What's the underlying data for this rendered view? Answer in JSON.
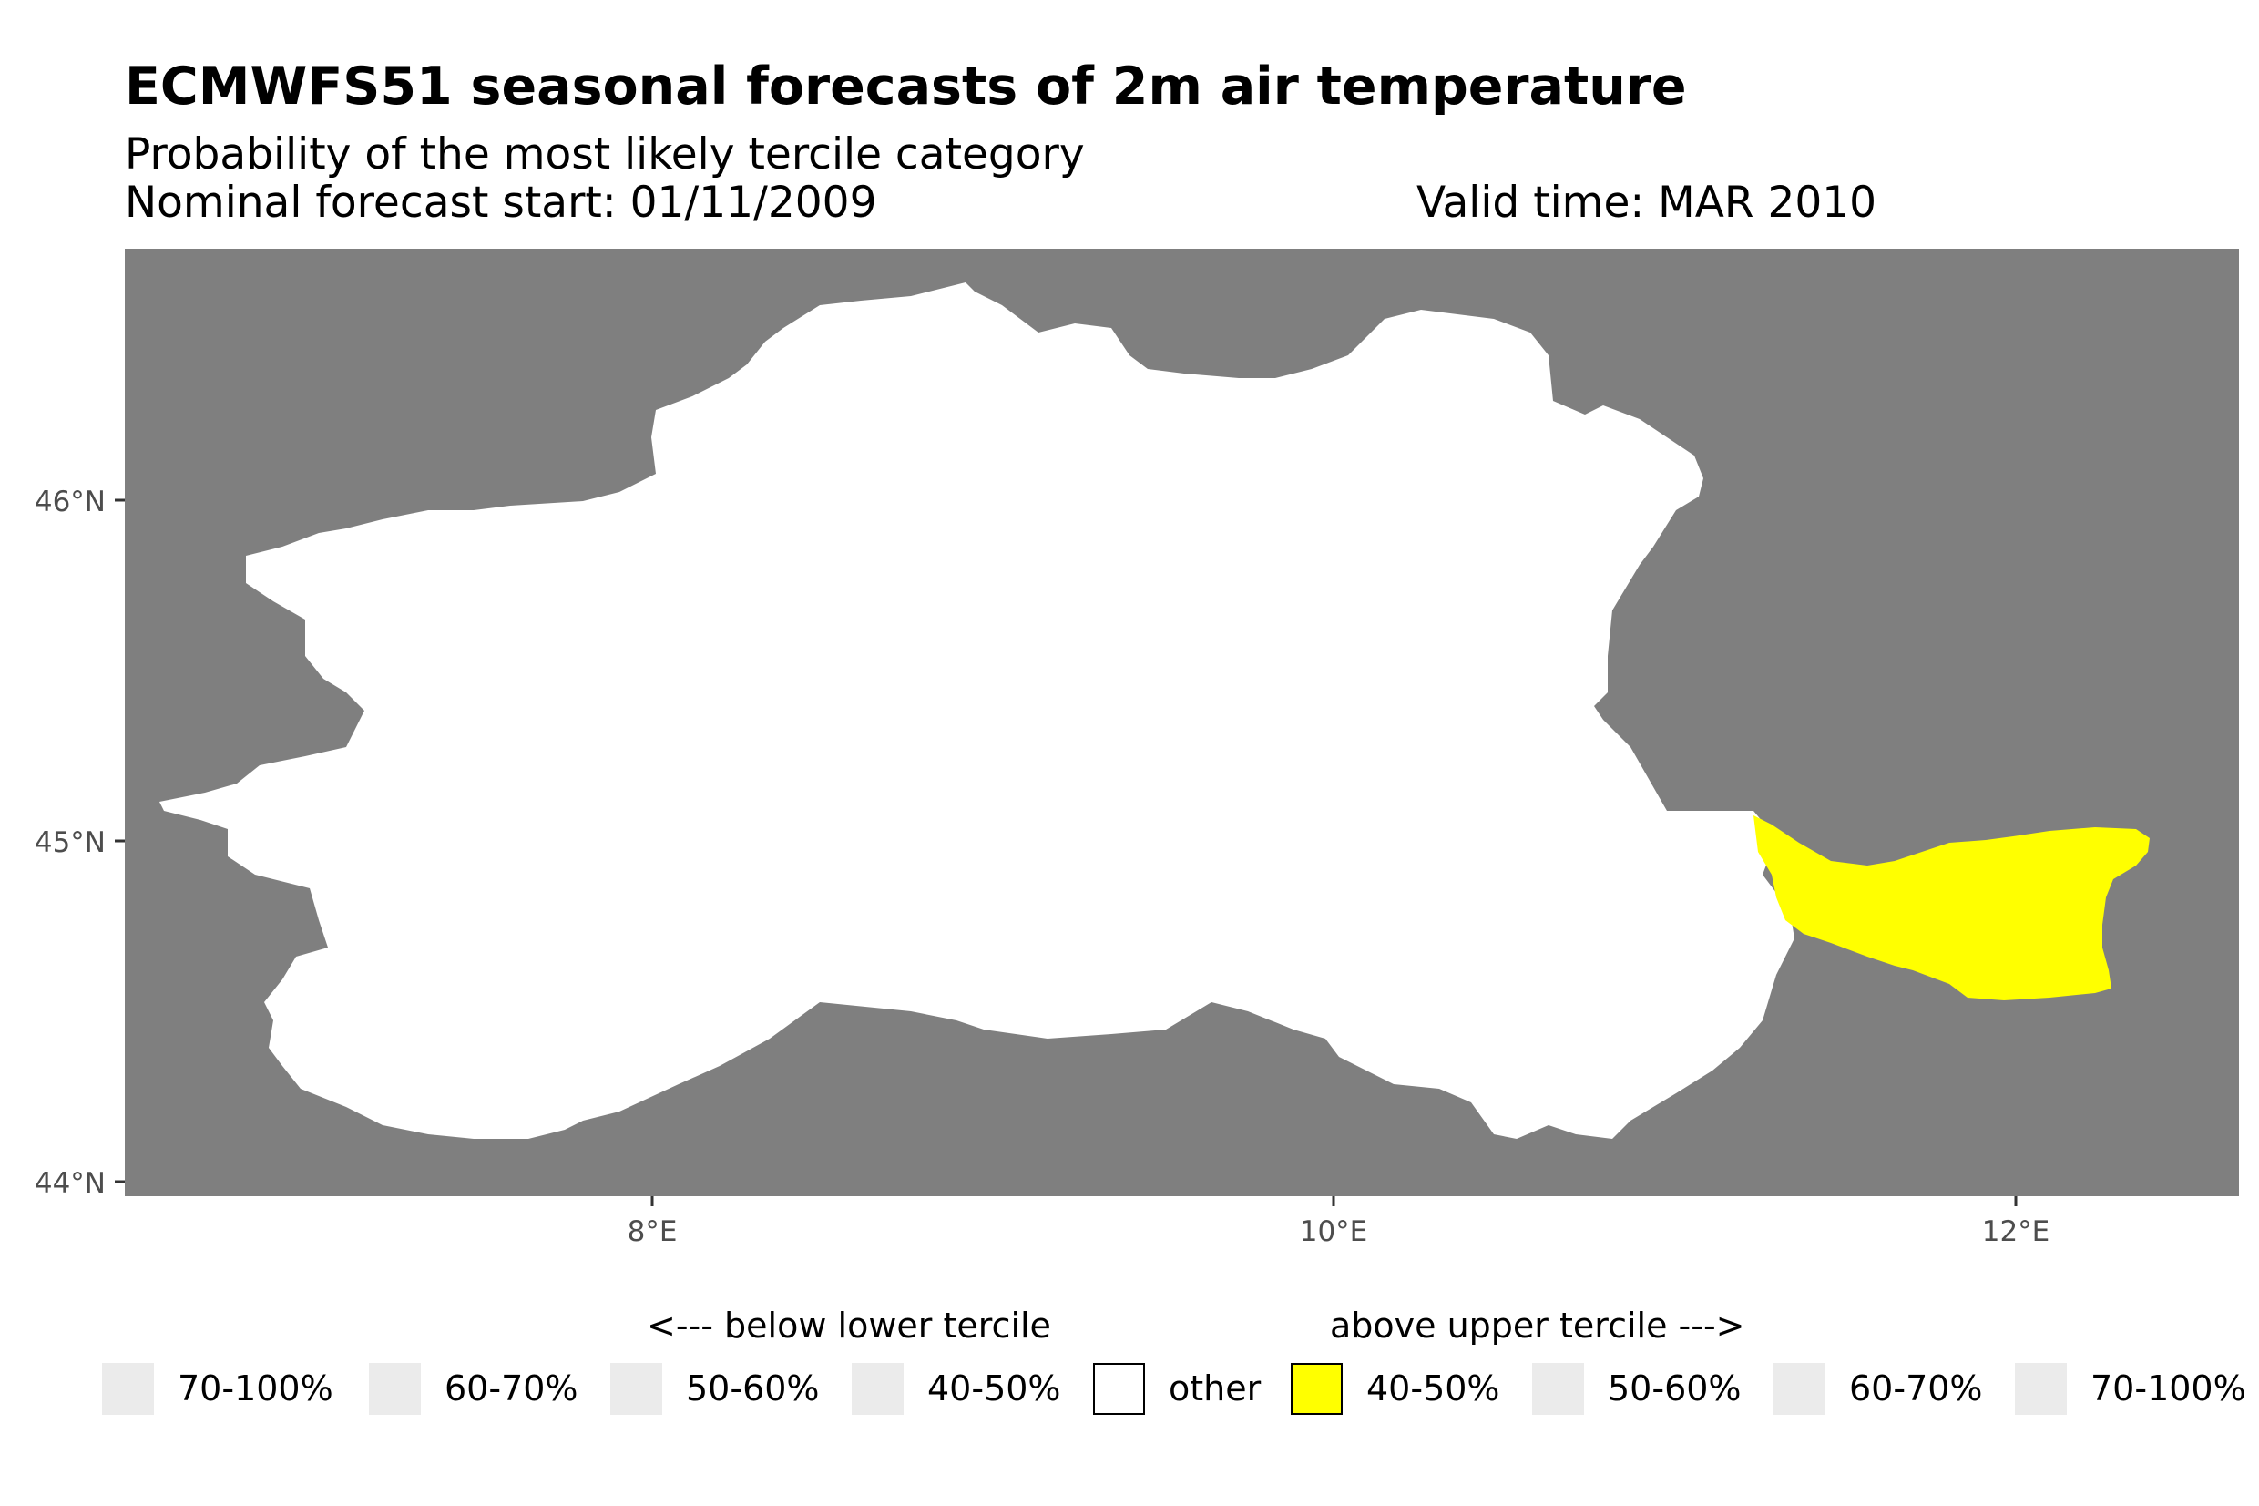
{
  "title": "ECMWFS51 seasonal forecasts of 2m air temperature",
  "subtitle": "Probability of the most likely tercile category",
  "forecast_start": "Nominal forecast start: 01/11/2009",
  "valid_time": "Valid time: MAR 2010",
  "colors": {
    "panel": "#7f7f7f",
    "region": "#ffffff",
    "highlight": "#ffff00",
    "empty_swatch": "#ebebeb"
  },
  "map": {
    "y_ticks": [
      "46°N",
      "45°N",
      "44°N"
    ],
    "x_ticks": [
      "8°E",
      "10°E",
      "12°E"
    ]
  },
  "legend": {
    "below_heading": "<--- below lower tercile",
    "above_heading": "above upper tercile --->",
    "items": [
      {
        "label": "70-100%",
        "color": "#ebebeb"
      },
      {
        "label": "60-70%",
        "color": "#ebebeb"
      },
      {
        "label": "50-60%",
        "color": "#ebebeb"
      },
      {
        "label": "40-50%",
        "color": "#ebebeb"
      },
      {
        "label": "other",
        "color": "#ffffff"
      },
      {
        "label": "40-50%",
        "color": "#ffff00"
      },
      {
        "label": "50-60%",
        "color": "#ebebeb"
      },
      {
        "label": "60-70%",
        "color": "#ebebeb"
      },
      {
        "label": "70-100%",
        "color": "#ebebeb"
      }
    ]
  }
}
